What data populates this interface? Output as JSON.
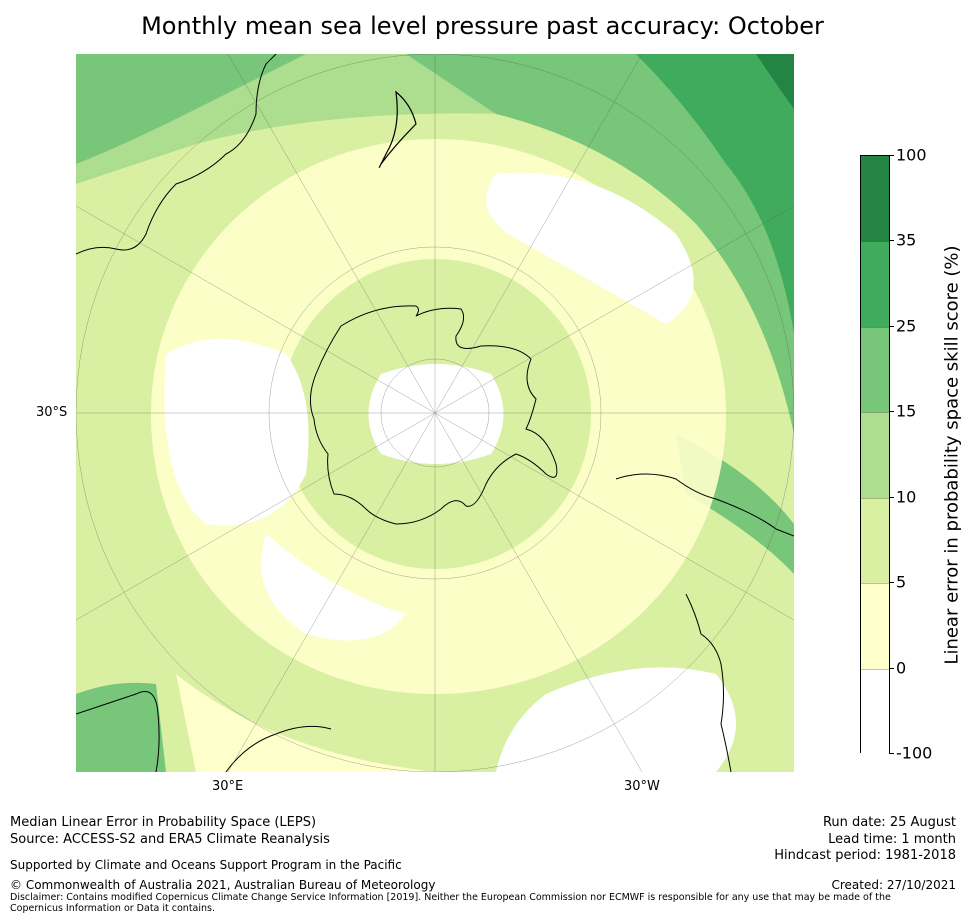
{
  "title": "Monthly mean sea level pressure past accuracy: October",
  "map": {
    "lat_label": "30°S",
    "lon_labels": [
      "30°E",
      "30°W"
    ],
    "colors": {
      "white": "#ffffff",
      "pale_yellow": "#ffffcc",
      "light_yellow_green": "#d9f0a3",
      "light_green": "#addd8e",
      "mid_green": "#78c679",
      "green": "#41ab5d",
      "dark_green": "#238443"
    }
  },
  "colorbar": {
    "label": "Linear error in probability space skill score (%)",
    "ticks": [
      "100",
      "35",
      "25",
      "15",
      "10",
      "5",
      "0",
      "-100"
    ],
    "colors": [
      "#238443",
      "#41ab5d",
      "#78c679",
      "#addd8e",
      "#d9f0a3",
      "#ffffcc",
      "#ffffff"
    ]
  },
  "footer": {
    "method": "Median Linear Error in Probability Space (LEPS)",
    "source": "Source: ACCESS-S2 and ERA5 Climate Reanalysis",
    "support": "Supported by Climate and Oceans Support Program in the Pacific",
    "copyright": "© Commonwealth of Australia 2021, Australian Bureau of Meteorology",
    "disclaimer": "Disclaimer: Contains modified Copernicus Climate Change Service Information [2019]. Neither the European Commission nor ECMWF is responsible for any use that may be made of the Copernicus Information or Data it contains.",
    "run_date": "Run date: 25 August",
    "lead_time": "Lead time: 1 month",
    "hindcast": "Hindcast period: 1981-2018",
    "created": "Created: 27/10/2021"
  }
}
